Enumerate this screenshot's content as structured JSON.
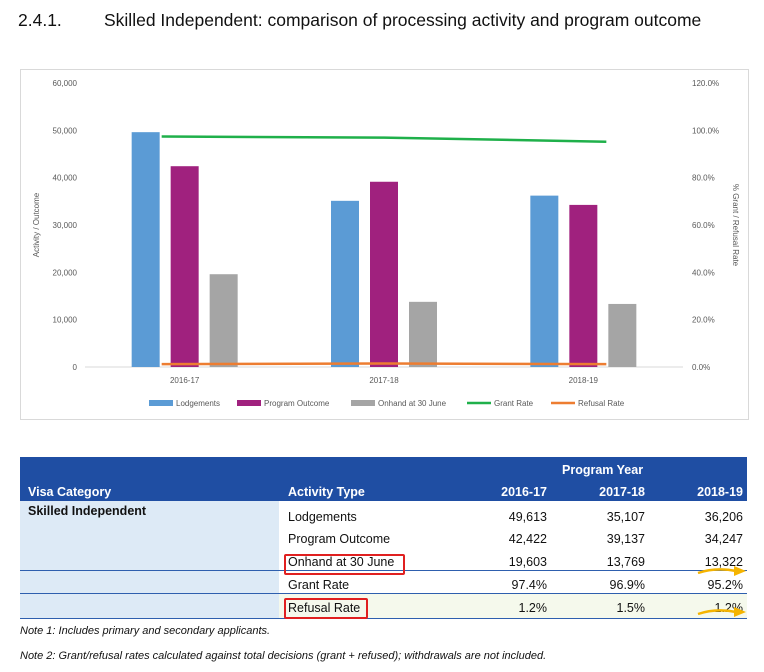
{
  "heading": {
    "number": "2.4.1.",
    "title": "Skilled Independent: comparison of processing activity and program outcome"
  },
  "chart_data": {
    "type": "bar",
    "categories": [
      "2016-17",
      "2017-18",
      "2018-19"
    ],
    "series": [
      {
        "name": "Lodgements",
        "kind": "bar",
        "axis": "left",
        "color": "#5b9bd5",
        "values": [
          49613,
          35107,
          36206
        ]
      },
      {
        "name": "Program Outcome",
        "kind": "bar",
        "axis": "left",
        "color": "#a0217e",
        "values": [
          42422,
          39137,
          34247
        ]
      },
      {
        "name": "Onhand at 30 June",
        "kind": "bar",
        "axis": "left",
        "color": "#a5a5a5",
        "values": [
          19603,
          13769,
          13322
        ]
      },
      {
        "name": "Grant Rate",
        "kind": "line",
        "axis": "right",
        "color": "#1fb04a",
        "values": [
          97.4,
          96.9,
          95.2
        ]
      },
      {
        "name": "Refusal Rate",
        "kind": "line",
        "axis": "right",
        "color": "#ed7d31",
        "values": [
          1.2,
          1.5,
          1.2
        ]
      }
    ],
    "y_left": {
      "label": "Activity / Outcome",
      "min": 0,
      "max": 60000,
      "ticks": [
        "0",
        "10,000",
        "20,000",
        "30,000",
        "40,000",
        "50,000",
        "60,000"
      ]
    },
    "y_right": {
      "label": "% Grant / Refusal Rate",
      "min": 0,
      "max": 120,
      "ticks": [
        "0.0%",
        "20.0%",
        "40.0%",
        "60.0%",
        "80.0%",
        "100.0%",
        "120.0%"
      ]
    },
    "legend_position": "bottom",
    "grid": false
  },
  "table": {
    "header": {
      "program_year": "Program Year",
      "visa_category": "Visa Category",
      "activity_type": "Activity Type",
      "years": [
        "2016-17",
        "2017-18",
        "2018-19"
      ]
    },
    "category": "Skilled Independent",
    "rows": [
      {
        "label": "Lodgements",
        "values": [
          "49,613",
          "35,107",
          "36,206"
        ]
      },
      {
        "label": "Program Outcome",
        "values": [
          "42,422",
          "39,137",
          "34,247"
        ]
      },
      {
        "label": "Onhand at 30 June",
        "values": [
          "19,603",
          "13,769",
          "13,322"
        ]
      },
      {
        "label": "Grant Rate",
        "values": [
          "97.4%",
          "96.9%",
          "95.2%"
        ]
      },
      {
        "label": "Refusal Rate",
        "values": [
          "1.2%",
          "1.5%",
          "1.2%"
        ]
      }
    ]
  },
  "notes": [
    "Note 1: Includes primary and secondary applicants.",
    "Note 2: Grant/refusal rates calculated against total decisions (grant + refused); withdrawals are not included."
  ]
}
